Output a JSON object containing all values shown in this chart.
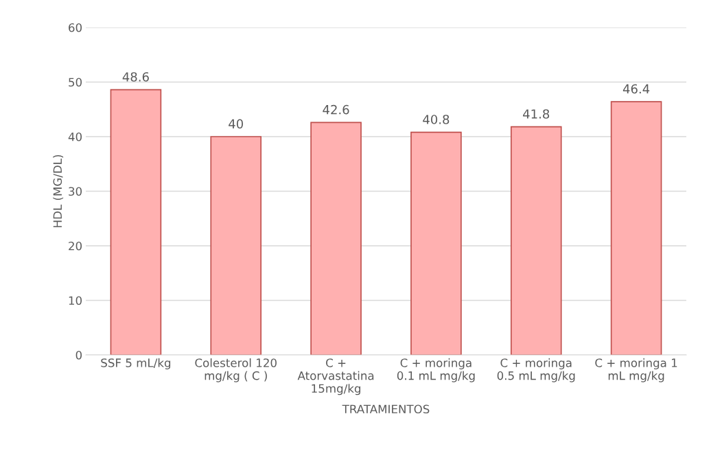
{
  "chart_data": {
    "type": "bar",
    "categories": [
      "SSF 5 mL/kg",
      "Colesterol 120\nmg/kg ( C )",
      "C +\nAtorvastatina\n15mg/kg",
      "C + moringa\n0.1 mL mg/kg",
      "C + moringa\n0.5 mL mg/kg",
      "C + moringa 1\nmL mg/kg"
    ],
    "values": [
      48.6,
      40,
      42.6,
      40.8,
      41.8,
      46.4
    ],
    "color": "#ffb0b0",
    "xlabel": "TRATAMIENTOS",
    "ylabel": "HDL (MG/DL)",
    "ylim": [
      0,
      60
    ],
    "yticks": [
      0,
      10,
      20,
      30,
      40,
      50,
      60
    ],
    "grid": "y",
    "data_labels": true
  }
}
